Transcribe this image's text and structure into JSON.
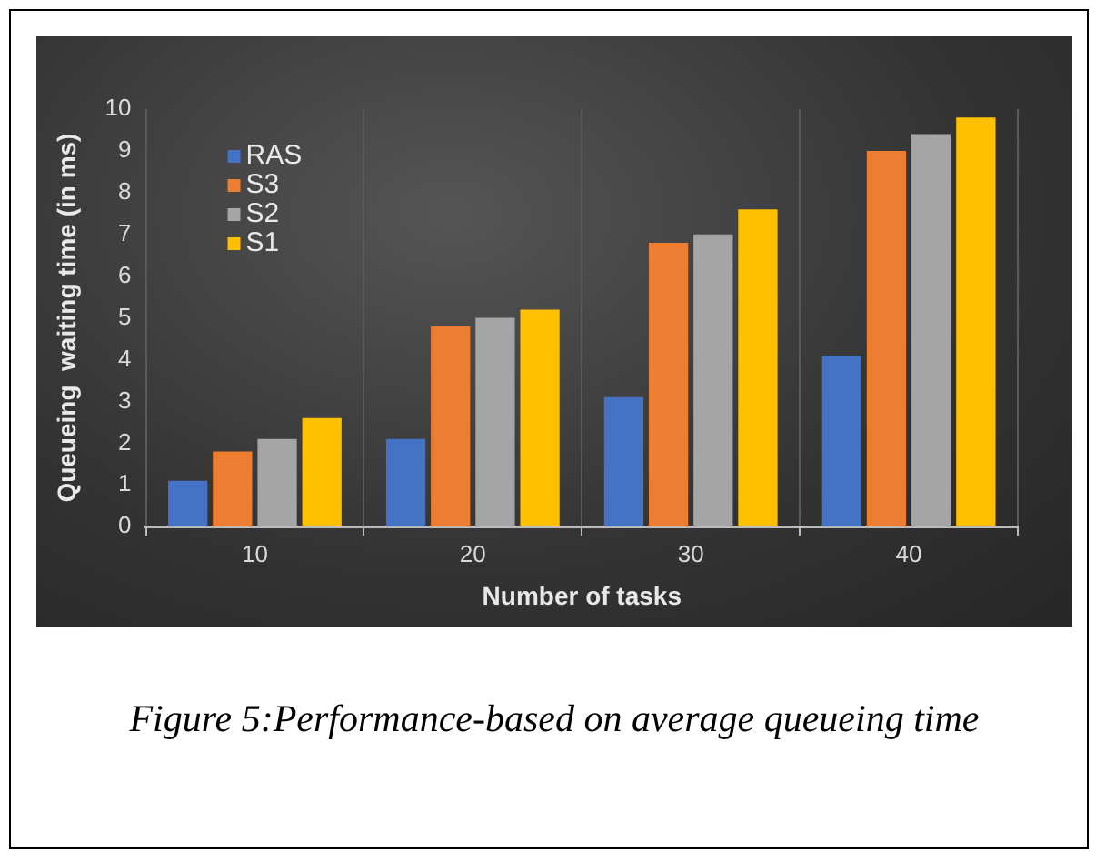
{
  "chart_data": {
    "type": "bar",
    "xlabel": "Number of tasks",
    "ylabel": "Queueing  waiting time (in ms)",
    "categories": [
      "10",
      "20",
      "30",
      "40"
    ],
    "series": [
      {
        "name": "RAS",
        "color": "#4472c4",
        "values": [
          1.1,
          2.1,
          3.1,
          4.1
        ]
      },
      {
        "name": "S3",
        "color": "#ed7d31",
        "values": [
          1.8,
          4.8,
          6.8,
          9.0
        ]
      },
      {
        "name": "S2",
        "color": "#a5a5a5",
        "values": [
          2.1,
          5.0,
          7.0,
          9.4
        ]
      },
      {
        "name": "S1",
        "color": "#ffc000",
        "values": [
          2.6,
          5.2,
          7.6,
          9.8
        ]
      }
    ],
    "ylim": [
      0,
      10
    ],
    "yticks": [
      0,
      1,
      2,
      3,
      4,
      5,
      6,
      7,
      8,
      9,
      10
    ],
    "grid": "x",
    "legend": "top left",
    "annotations": [
      "Figure 5:Performance-based on average queueing time"
    ]
  }
}
